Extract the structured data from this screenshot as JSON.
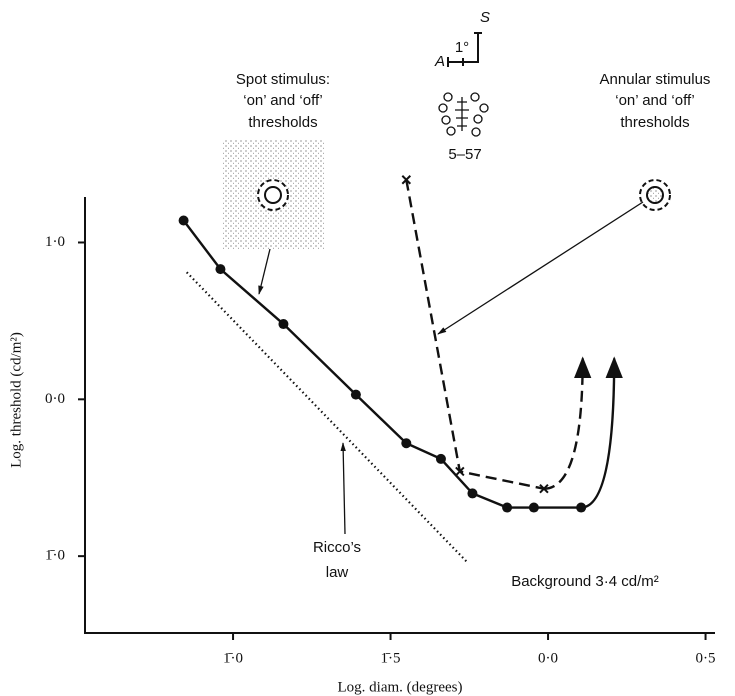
{
  "chart_data": {
    "type": "line",
    "x_label": "Log. diam. (degrees)",
    "y_label": "Log. threshold (cd/m²)",
    "xlim": [
      -1.47,
      0.53
    ],
    "ylim": [
      -1.49,
      1.29
    ],
    "xticks": [
      {
        "value": -1.0,
        "label": "1̄·0"
      },
      {
        "value": -0.5,
        "label": "1̄·5"
      },
      {
        "value": 0.0,
        "label": "0·0"
      },
      {
        "value": 0.5,
        "label": "0·5"
      }
    ],
    "yticks": [
      {
        "value": 1.0,
        "label": "1·0"
      },
      {
        "value": 0.0,
        "label": "0·0"
      },
      {
        "value": -1.0,
        "label": "1̄·0"
      }
    ],
    "series": [
      {
        "marker": "dot",
        "linestyle": "solid",
        "color": "#111111",
        "x": [
          -1.157,
          -1.04,
          -0.84,
          -0.61,
          -0.45,
          -0.34,
          -0.24,
          -0.13,
          -0.045,
          0.105
        ],
        "values": [
          1.14,
          0.83,
          0.48,
          0.03,
          -0.28,
          -0.38,
          -0.6,
          -0.69,
          -0.69,
          -0.69
        ],
        "arrow_tip": [
          0.21,
          0.26
        ]
      },
      {
        "marker": "cross",
        "linestyle": "dashed",
        "color": "#111111",
        "x": [
          -0.45,
          -0.28,
          -0.013
        ],
        "values": [
          1.4,
          -0.46,
          -0.57
        ],
        "arrow_tip": [
          0.11,
          0.26
        ]
      },
      {
        "marker": "none",
        "linestyle": "dotted",
        "color": "#111111",
        "x": [
          -1.147,
          -0.256
        ],
        "values": [
          0.81,
          -1.04
        ]
      }
    ],
    "annotations": {
      "spot": [
        "Spot stimulus:",
        "‘on’ and ‘off’",
        "thresholds"
      ],
      "annular": [
        "Annular stimulus",
        "‘on’ and ‘off’",
        "thresholds"
      ],
      "ricco": [
        "Ricco’s",
        "law"
      ],
      "background": "Background 3·4 cd/m²",
      "cell": "5–57",
      "scale": {
        "a": "A",
        "s": "S",
        "deg": "1°"
      }
    }
  }
}
